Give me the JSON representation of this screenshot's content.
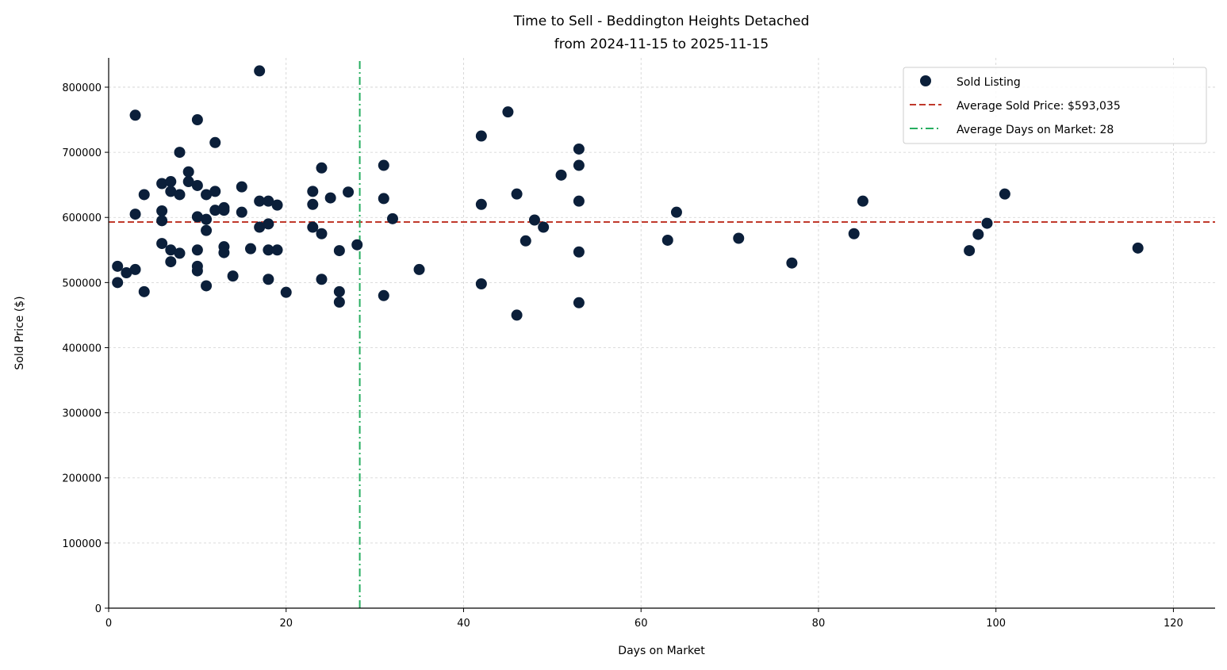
{
  "chart_data": {
    "type": "scatter",
    "title": "Time to Sell - Beddington Heights Detached",
    "subtitle": "from 2024-11-15 to 2025-11-15",
    "xlabel": "Days on Market",
    "ylabel": "Sold Price ($)",
    "xlim": [
      0,
      124.7
    ],
    "ylim": [
      0,
      845000
    ],
    "xticks": [
      0,
      20,
      40,
      60,
      80,
      100,
      120
    ],
    "yticks": [
      0,
      100000,
      200000,
      300000,
      400000,
      500000,
      600000,
      700000,
      800000
    ],
    "grid": true,
    "legend_position": "top-right",
    "colors": {
      "points": "#0b1f3a",
      "avg_price": "#c0392b",
      "avg_days": "#27ae60",
      "grid": "#d0d0d0"
    },
    "legend": [
      "Sold Listing",
      "Average Sold Price: $593,035",
      "Average Days on Market: 28"
    ],
    "avg_price": 593035,
    "avg_days": 28.3,
    "points": [
      [
        1,
        525000
      ],
      [
        1,
        500000
      ],
      [
        2,
        515000
      ],
      [
        3,
        757000
      ],
      [
        3,
        605000
      ],
      [
        3,
        520000
      ],
      [
        4,
        635000
      ],
      [
        4,
        486000
      ],
      [
        6,
        652000
      ],
      [
        6,
        610000
      ],
      [
        6,
        595000
      ],
      [
        6,
        560000
      ],
      [
        7,
        655000
      ],
      [
        7,
        640000
      ],
      [
        7,
        550000
      ],
      [
        7,
        532000
      ],
      [
        8,
        700000
      ],
      [
        8,
        635000
      ],
      [
        8,
        545000
      ],
      [
        9,
        670000
      ],
      [
        9,
        655000
      ],
      [
        10,
        750000
      ],
      [
        10,
        649000
      ],
      [
        10,
        601000
      ],
      [
        10,
        550000
      ],
      [
        10,
        525000
      ],
      [
        10,
        518000
      ],
      [
        11,
        635000
      ],
      [
        11,
        597000
      ],
      [
        11,
        580000
      ],
      [
        11,
        495000
      ],
      [
        12,
        715000
      ],
      [
        12,
        640000
      ],
      [
        12,
        611000
      ],
      [
        13,
        615000
      ],
      [
        13,
        611000
      ],
      [
        13,
        555000
      ],
      [
        13,
        546000
      ],
      [
        14,
        510000
      ],
      [
        15,
        647000
      ],
      [
        15,
        608000
      ],
      [
        16,
        552000
      ],
      [
        17,
        825000
      ],
      [
        17,
        625000
      ],
      [
        17,
        585000
      ],
      [
        18,
        625000
      ],
      [
        18,
        590000
      ],
      [
        18,
        550000
      ],
      [
        18,
        505000
      ],
      [
        19,
        619000
      ],
      [
        19,
        550000
      ],
      [
        20,
        485000
      ],
      [
        23,
        640000
      ],
      [
        23,
        620000
      ],
      [
        23,
        585000
      ],
      [
        24,
        676000
      ],
      [
        24,
        575000
      ],
      [
        24,
        505000
      ],
      [
        25,
        630000
      ],
      [
        26,
        549000
      ],
      [
        26,
        486000
      ],
      [
        26,
        470000
      ],
      [
        27,
        639000
      ],
      [
        28,
        558000
      ],
      [
        31,
        680000
      ],
      [
        31,
        629000
      ],
      [
        31,
        480000
      ],
      [
        32,
        598000
      ],
      [
        35,
        520000
      ],
      [
        42,
        725000
      ],
      [
        42,
        620000
      ],
      [
        42,
        498000
      ],
      [
        45,
        762000
      ],
      [
        46,
        636000
      ],
      [
        46,
        450000
      ],
      [
        47,
        564000
      ],
      [
        48,
        596000
      ],
      [
        49,
        585000
      ],
      [
        51,
        665000
      ],
      [
        53,
        705000
      ],
      [
        53,
        680000
      ],
      [
        53,
        625000
      ],
      [
        53,
        547000
      ],
      [
        53,
        469000
      ],
      [
        63,
        565000
      ],
      [
        64,
        608000
      ],
      [
        71,
        568000
      ],
      [
        77,
        530000
      ],
      [
        84,
        575000
      ],
      [
        85,
        625000
      ],
      [
        97,
        549000
      ],
      [
        98,
        574000
      ],
      [
        99,
        591000
      ],
      [
        101,
        636000
      ],
      [
        116,
        553000
      ]
    ]
  }
}
